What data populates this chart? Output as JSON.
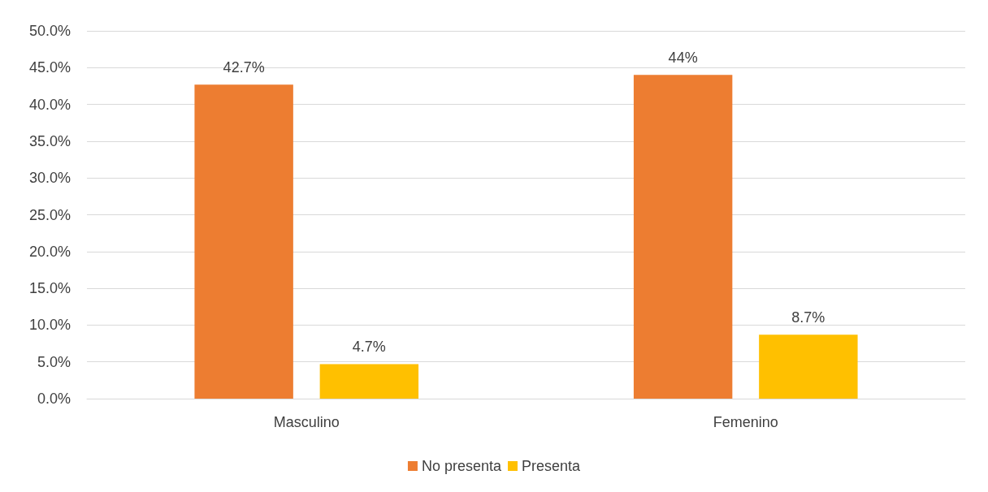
{
  "chart_data": {
    "type": "bar",
    "categories": [
      "Masculino",
      "Femenino"
    ],
    "series": [
      {
        "name": "No presenta",
        "color": "#ed7d31",
        "values": [
          42.7,
          44
        ],
        "value_labels": [
          "42.7%",
          "44%"
        ]
      },
      {
        "name": "Presenta",
        "color": "#ffc000",
        "values": [
          4.7,
          8.7
        ],
        "value_labels": [
          "4.7%",
          "8.7%"
        ]
      }
    ],
    "ylim": [
      0,
      50
    ],
    "yticks": [
      {
        "value": 0,
        "label": "0.0%"
      },
      {
        "value": 5,
        "label": "5.0%"
      },
      {
        "value": 10,
        "label": "10.0%"
      },
      {
        "value": 15,
        "label": "15.0%"
      },
      {
        "value": 20,
        "label": "20.0%"
      },
      {
        "value": 25,
        "label": "25.0%"
      },
      {
        "value": 30,
        "label": "30.0%"
      },
      {
        "value": 35,
        "label": "35.0%"
      },
      {
        "value": 40,
        "label": "40.0%"
      },
      {
        "value": 45,
        "label": "45.0%"
      },
      {
        "value": 50,
        "label": "50.0%"
      }
    ],
    "grid": "y",
    "legend": "bottom"
  }
}
